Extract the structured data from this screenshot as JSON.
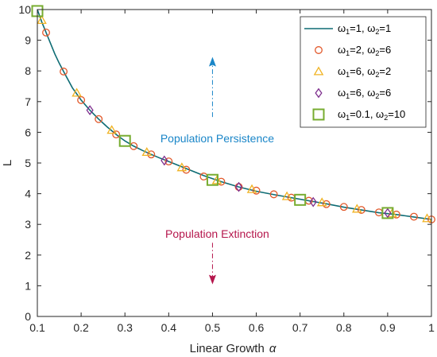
{
  "chart_data": {
    "type": "line",
    "xlabel": "Linear Growth",
    "xlabel_symbol": "α",
    "ylabel": "L",
    "xlim": [
      0.1,
      1
    ],
    "ylim": [
      0,
      10
    ],
    "xticks": [
      "0.1",
      "0.2",
      "0.3",
      "0.4",
      "0.5",
      "0.6",
      "0.7",
      "0.8",
      "0.9",
      "1"
    ],
    "yticks": [
      "0",
      "1",
      "2",
      "3",
      "4",
      "5",
      "6",
      "7",
      "8",
      "9",
      "10"
    ],
    "grid": false,
    "legend_position": "top-right",
    "curve": {
      "x": [
        0.1,
        0.11,
        0.12,
        0.13,
        0.14,
        0.15,
        0.16,
        0.18,
        0.2,
        0.22,
        0.24,
        0.26,
        0.28,
        0.3,
        0.32,
        0.34,
        0.36,
        0.38,
        0.4,
        0.44,
        0.48,
        0.52,
        0.56,
        0.6,
        0.64,
        0.68,
        0.72,
        0.76,
        0.8,
        0.84,
        0.88,
        0.92,
        0.96,
        1.0
      ],
      "y": [
        10.0,
        9.6,
        9.25,
        8.9,
        8.55,
        8.25,
        7.98,
        7.45,
        7.05,
        6.72,
        6.43,
        6.17,
        5.93,
        5.72,
        5.55,
        5.41,
        5.28,
        5.16,
        5.05,
        4.82,
        4.59,
        4.39,
        4.22,
        4.08,
        3.97,
        3.87,
        3.77,
        3.67,
        3.56,
        3.47,
        3.38,
        3.32,
        3.24,
        3.16
      ]
    },
    "series": [
      {
        "name": "ω1=1, ω2=1",
        "legend": {
          "main": "ω",
          "sub1": "1",
          "mid": "=1, ω",
          "sub2": "2",
          "end": "=1"
        },
        "marker": "line",
        "color": "#0e6c74"
      },
      {
        "name": "ω1=2, ω2=6",
        "legend": {
          "main": "ω",
          "sub1": "1",
          "mid": "=2, ω",
          "sub2": "2",
          "end": "=6"
        },
        "marker": "circle",
        "color": "#e2582a",
        "x": [
          0.12,
          0.16,
          0.2,
          0.24,
          0.28,
          0.32,
          0.36,
          0.4,
          0.44,
          0.48,
          0.52,
          0.56,
          0.6,
          0.64,
          0.68,
          0.72,
          0.76,
          0.8,
          0.84,
          0.88,
          0.92,
          0.96,
          1.0
        ],
        "y": [
          9.25,
          7.98,
          7.05,
          6.43,
          5.93,
          5.55,
          5.28,
          5.05,
          4.78,
          4.56,
          4.39,
          4.22,
          4.1,
          3.98,
          3.87,
          3.77,
          3.66,
          3.57,
          3.47,
          3.39,
          3.32,
          3.25,
          3.16
        ]
      },
      {
        "name": "ω1=6, ω2=2",
        "legend": {
          "main": "ω",
          "sub1": "1",
          "mid": "=6, ω",
          "sub2": "2",
          "end": "=2"
        },
        "marker": "triangle",
        "color": "#f0b323",
        "x": [
          0.11,
          0.19,
          0.27,
          0.35,
          0.43,
          0.51,
          0.59,
          0.67,
          0.75,
          0.83,
          0.91,
          0.99
        ],
        "y": [
          9.65,
          7.28,
          6.07,
          5.35,
          4.85,
          4.43,
          4.14,
          3.91,
          3.71,
          3.5,
          3.35,
          3.19
        ]
      },
      {
        "name": "ω1=6, ω2=6",
        "legend": {
          "main": "ω",
          "sub1": "1",
          "mid": "=6, ω",
          "sub2": "2",
          "end": "=6"
        },
        "marker": "diamond",
        "color": "#7e2f8e",
        "x": [
          0.22,
          0.39,
          0.56,
          0.73,
          0.9
        ],
        "y": [
          6.72,
          5.08,
          4.22,
          3.73,
          3.37
        ]
      },
      {
        "name": "ω1=0.1, ω2=10",
        "legend": {
          "main": "ω",
          "sub1": "1",
          "mid": "=0.1, ω",
          "sub2": "2",
          "end": "=10"
        },
        "marker": "square",
        "color": "#77ac30",
        "x": [
          0.1,
          0.3,
          0.5,
          0.7,
          0.9
        ],
        "y": [
          9.95,
          5.72,
          4.45,
          3.8,
          3.37
        ]
      }
    ],
    "annotations": [
      {
        "text": "Population Persistence",
        "color": "#1a86c8",
        "x": 0.5,
        "y": 5.8,
        "arrow_from_y": 6.5,
        "arrow_to_y": 8.3,
        "direction": "up"
      },
      {
        "text": "Population Extinction",
        "color": "#b5164c",
        "x": 0.5,
        "y": 2.7,
        "arrow_from_y": 2.4,
        "arrow_to_y": 1.2,
        "direction": "down"
      }
    ]
  }
}
